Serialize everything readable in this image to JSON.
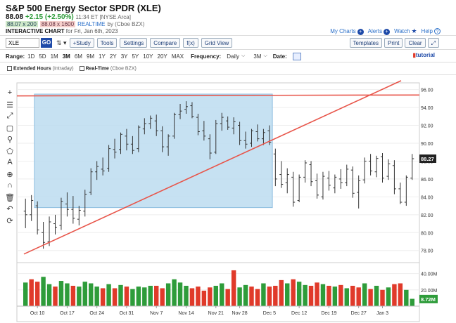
{
  "header": {
    "title": "S&P 500 Energy Sector SPDR (XLE)",
    "last": "88.08",
    "change": "+2.15 (+2.50%)",
    "meta": "11:34 ET [NYSE Arca]",
    "bid": "88.07 x 200",
    "ask": "88.08 x 1600",
    "realtime": "REALTIME",
    "source": "by (Cboe BZX)",
    "interactive_label": "INTERACTIVE CHART",
    "interactive_date": "for Fri, Jan 6th, 2023"
  },
  "links": {
    "my_charts": "My Charts",
    "alerts": "Alerts",
    "watch": "Watch",
    "help": "Help"
  },
  "toolbar": {
    "symbol": "XLE",
    "go": "GO",
    "study": "+Study",
    "tools": "Tools",
    "settings": "Settings",
    "compare": "Compare",
    "fx": "f(x)",
    "grid_view": "Grid View",
    "templates": "Templates",
    "print": "Print",
    "clear": "Clear"
  },
  "range": {
    "label": "Range:",
    "options": [
      "1D",
      "5D",
      "1M",
      "3M",
      "6M",
      "9M",
      "1Y",
      "2Y",
      "3Y",
      "5Y",
      "10Y",
      "20Y",
      "MAX"
    ],
    "selected": "3M",
    "frequency_label": "Frequency:",
    "frequency": "Daily",
    "period": "3M",
    "date_label": "Date:",
    "tutorial": "tutorial"
  },
  "options": {
    "extended_hours": "Extended Hours",
    "extended_hours_sub": "(Intraday)",
    "realtime": "Real-Time",
    "realtime_sub": "(Cboe BZX)"
  },
  "colors": {
    "up": "#2e9c3a",
    "down": "#e03a2a",
    "accent": "#1e4aa8",
    "zone": "#bcdcf0"
  },
  "chart_data": {
    "type": "bar",
    "y_ticks": [
      "96.00",
      "94.00",
      "92.00",
      "90.00",
      "88.00",
      "86.00",
      "84.00",
      "82.00",
      "80.00",
      "78.00"
    ],
    "ylim": [
      76.8,
      96.6
    ],
    "current_price": "88.27",
    "x_ticks": [
      "Oct 10",
      "Oct 17",
      "Oct 24",
      "Oct 31",
      "Nov 7",
      "Nov 14",
      "Nov 21",
      "Nov 28",
      "Dec 5",
      "Dec 12",
      "Dec 19",
      "Dec 27",
      "Jan 3"
    ],
    "volume_ticks": [
      "40.00M",
      "20.00M"
    ],
    "volume_max": 50,
    "current_volume": "8.72M",
    "ohlc": [
      [
        82.4,
        83.8,
        80.5,
        82.0
      ],
      [
        82.0,
        84.2,
        81.3,
        83.6
      ],
      [
        83.0,
        83.5,
        79.8,
        80.3
      ],
      [
        80.0,
        81.2,
        78.2,
        78.9
      ],
      [
        79.0,
        81.8,
        78.5,
        81.2
      ],
      [
        81.0,
        82.0,
        79.8,
        80.6
      ],
      [
        80.8,
        83.9,
        80.3,
        83.5
      ],
      [
        83.2,
        84.5,
        81.8,
        82.6
      ],
      [
        82.6,
        84.1,
        81.0,
        81.6
      ],
      [
        81.5,
        83.0,
        80.8,
        82.5
      ],
      [
        82.4,
        84.8,
        81.8,
        84.3
      ],
      [
        84.5,
        87.2,
        84.2,
        86.8
      ],
      [
        86.8,
        88.0,
        85.9,
        87.4
      ],
      [
        87.1,
        88.4,
        86.4,
        86.9
      ],
      [
        87.2,
        89.8,
        86.8,
        89.4
      ],
      [
        89.3,
        90.5,
        88.3,
        89.0
      ],
      [
        89.3,
        91.2,
        88.8,
        91.0
      ],
      [
        90.8,
        91.6,
        89.2,
        89.9
      ],
      [
        89.9,
        90.8,
        88.8,
        89.2
      ],
      [
        89.4,
        92.0,
        89.0,
        91.8
      ],
      [
        91.6,
        92.8,
        91.0,
        92.2
      ],
      [
        92.2,
        93.1,
        91.6,
        92.8
      ],
      [
        92.5,
        93.2,
        90.8,
        91.4
      ],
      [
        91.4,
        91.9,
        89.0,
        89.6
      ],
      [
        89.6,
        91.0,
        88.6,
        90.8
      ],
      [
        90.8,
        93.4,
        90.5,
        93.2
      ],
      [
        93.2,
        94.4,
        92.7,
        93.6
      ],
      [
        93.8,
        94.7,
        93.3,
        94.1
      ],
      [
        94.2,
        94.6,
        92.8,
        93.0
      ],
      [
        92.9,
        93.3,
        90.9,
        91.3
      ],
      [
        91.4,
        92.5,
        90.3,
        90.8
      ],
      [
        90.5,
        91.0,
        88.2,
        88.9
      ],
      [
        89.0,
        92.6,
        88.8,
        92.2
      ],
      [
        92.2,
        93.4,
        91.4,
        92.9
      ],
      [
        92.5,
        93.0,
        91.5,
        91.8
      ],
      [
        91.7,
        92.9,
        91.0,
        92.4
      ],
      [
        92.0,
        92.4,
        89.8,
        90.3
      ],
      [
        90.3,
        91.3,
        89.4,
        89.9
      ],
      [
        90.0,
        91.6,
        89.6,
        91.4
      ],
      [
        91.3,
        92.1,
        90.2,
        90.5
      ],
      [
        90.5,
        91.6,
        89.8,
        91.2
      ],
      [
        91.4,
        92.0,
        89.8,
        90.1
      ],
      [
        88.8,
        89.4,
        85.2,
        86.0
      ],
      [
        86.5,
        88.0,
        85.0,
        85.4
      ],
      [
        85.6,
        87.2,
        84.4,
        86.5
      ],
      [
        86.2,
        86.8,
        82.9,
        83.4
      ],
      [
        83.6,
        86.5,
        83.4,
        86.2
      ],
      [
        86.2,
        88.1,
        85.6,
        87.8
      ],
      [
        87.6,
        88.0,
        85.2,
        85.7
      ],
      [
        85.8,
        86.6,
        83.8,
        84.2
      ],
      [
        84.0,
        86.8,
        83.7,
        86.3
      ],
      [
        86.1,
        86.9,
        84.7,
        85.3
      ],
      [
        85.0,
        86.5,
        84.4,
        86.2
      ],
      [
        86.0,
        87.1,
        84.9,
        85.6
      ],
      [
        85.6,
        87.6,
        85.2,
        87.1
      ],
      [
        87.0,
        87.4,
        83.9,
        84.4
      ],
      [
        84.5,
        86.4,
        82.7,
        85.8
      ],
      [
        85.9,
        88.4,
        85.5,
        88.0
      ],
      [
        88.0,
        88.8,
        86.4,
        86.9
      ],
      [
        86.8,
        88.6,
        86.2,
        88.3
      ],
      [
        88.5,
        88.9,
        85.6,
        86.1
      ],
      [
        86.3,
        88.2,
        85.9,
        87.7
      ],
      [
        87.5,
        88.1,
        84.3,
        84.9
      ],
      [
        84.9,
        85.6,
        83.2,
        83.4
      ],
      [
        83.4,
        86.4,
        83.0,
        86.2
      ],
      [
        86.1,
        88.8,
        85.9,
        88.27
      ]
    ],
    "volumes": [
      [
        29,
        "up"
      ],
      [
        33,
        "down"
      ],
      [
        30,
        "down"
      ],
      [
        36,
        "up"
      ],
      [
        27,
        "up"
      ],
      [
        24,
        "down"
      ],
      [
        31,
        "up"
      ],
      [
        28,
        "up"
      ],
      [
        25,
        "down"
      ],
      [
        24,
        "up"
      ],
      [
        30,
        "up"
      ],
      [
        28,
        "up"
      ],
      [
        24,
        "up"
      ],
      [
        22,
        "down"
      ],
      [
        27,
        "up"
      ],
      [
        22,
        "down"
      ],
      [
        26,
        "up"
      ],
      [
        24,
        "down"
      ],
      [
        21,
        "up"
      ],
      [
        24,
        "up"
      ],
      [
        23,
        "up"
      ],
      [
        25,
        "up"
      ],
      [
        25,
        "down"
      ],
      [
        22,
        "down"
      ],
      [
        28,
        "up"
      ],
      [
        33,
        "up"
      ],
      [
        29,
        "up"
      ],
      [
        25,
        "up"
      ],
      [
        22,
        "down"
      ],
      [
        24,
        "down"
      ],
      [
        19,
        "down"
      ],
      [
        23,
        "down"
      ],
      [
        25,
        "up"
      ],
      [
        28,
        "up"
      ],
      [
        21,
        "down"
      ],
      [
        44,
        "down"
      ],
      [
        23,
        "up"
      ],
      [
        26,
        "up"
      ],
      [
        24,
        "down"
      ],
      [
        21,
        "down"
      ],
      [
        28,
        "up"
      ],
      [
        24,
        "down"
      ],
      [
        25,
        "down"
      ],
      [
        32,
        "down"
      ],
      [
        28,
        "up"
      ],
      [
        33,
        "down"
      ],
      [
        30,
        "up"
      ],
      [
        26,
        "up"
      ],
      [
        25,
        "down"
      ],
      [
        29,
        "down"
      ],
      [
        27,
        "up"
      ],
      [
        25,
        "down"
      ],
      [
        24,
        "up"
      ],
      [
        26,
        "down"
      ],
      [
        22,
        "up"
      ],
      [
        25,
        "down"
      ],
      [
        23,
        "down"
      ],
      [
        28,
        "up"
      ],
      [
        21,
        "down"
      ],
      [
        25,
        "up"
      ],
      [
        20,
        "down"
      ],
      [
        23,
        "up"
      ],
      [
        27,
        "down"
      ],
      [
        28,
        "down"
      ],
      [
        20,
        "up"
      ],
      [
        9,
        "up"
      ]
    ]
  }
}
